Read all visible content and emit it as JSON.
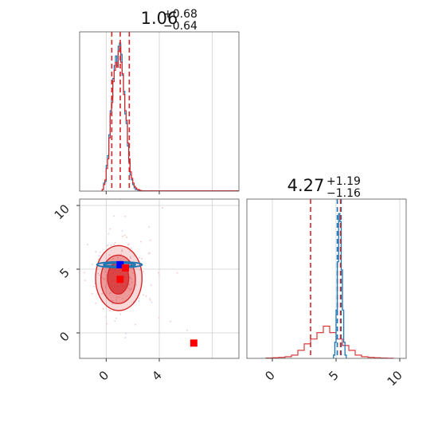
{
  "chart_data": {
    "type": "corner",
    "titles": {
      "param1": {
        "main": "1.06",
        "sup": "+0.68",
        "sub": "−0.64"
      },
      "param2": {
        "main": "4.27",
        "sup": "+1.19",
        "sub": "−1.16"
      }
    },
    "colors": {
      "red": "#d62728",
      "blue": "#1f77b4",
      "grid": "#cfcfcf"
    },
    "param1_hist": {
      "xlim": [
        -2,
        10
      ],
      "quantiles": [
        0.42,
        1.06,
        1.74
      ],
      "bins": [
        -0.3,
        -0.2,
        -0.1,
        0.0,
        0.1,
        0.2,
        0.3,
        0.4,
        0.5,
        0.6,
        0.7,
        0.8,
        0.9,
        1.0,
        1.1,
        1.2,
        1.3,
        1.4,
        1.5,
        1.6,
        1.7,
        1.8,
        1.9,
        2.0,
        2.1,
        2.2,
        2.3,
        2.4,
        2.5,
        2.6
      ],
      "red": [
        0.01,
        0.04,
        0.07,
        0.14,
        0.2,
        0.33,
        0.48,
        0.55,
        0.68,
        0.75,
        0.8,
        0.77,
        0.87,
        0.9,
        0.8,
        0.73,
        0.6,
        0.5,
        0.44,
        0.3,
        0.2,
        0.12,
        0.08,
        0.05,
        0.03,
        0.02,
        0.01,
        0.01,
        0.005,
        0.003
      ],
      "blue": [
        0.01,
        0.05,
        0.06,
        0.16,
        0.22,
        0.35,
        0.5,
        0.58,
        0.7,
        0.78,
        0.84,
        0.78,
        0.9,
        0.92,
        0.85,
        0.72,
        0.62,
        0.48,
        0.42,
        0.28,
        0.18,
        0.1,
        0.07,
        0.04,
        0.02,
        0.01,
        0.01,
        0.005,
        0.003,
        0.002
      ]
    },
    "scatter": {
      "xlim": [
        -2,
        10
      ],
      "ylim": [
        -2,
        10.5
      ],
      "x_ticks": [
        0,
        4
      ],
      "y_ticks": [
        0,
        5,
        10
      ],
      "red_contours": [
        {
          "cx": 0.9,
          "cy": 4.3,
          "rx": 0.8,
          "ry": 1.25,
          "level": 3
        },
        {
          "cx": 0.9,
          "cy": 4.2,
          "rx": 1.3,
          "ry": 1.9,
          "level": 2
        },
        {
          "cx": 0.95,
          "cy": 4.3,
          "rx": 1.75,
          "ry": 2.55,
          "level": 1
        }
      ],
      "blue_contours": [
        {
          "cx": 1.0,
          "cy": 5.35,
          "rx": 1.7,
          "ry": 0.22
        },
        {
          "cx": 1.0,
          "cy": 5.35,
          "rx": 1.2,
          "ry": 0.14
        }
      ],
      "markers": [
        {
          "x": 1.05,
          "y": 5.35,
          "color": "#0000ff"
        },
        {
          "x": 1.45,
          "y": 5.1,
          "color": "#ff0000"
        },
        {
          "x": 1.05,
          "y": 4.2,
          "color": "#ff0000"
        },
        {
          "x": 6.6,
          "y": -0.8,
          "color": "#ff0000"
        }
      ]
    },
    "param2_hist": {
      "xlim": [
        -2,
        10.5
      ],
      "x_ticks": [
        0,
        5,
        10
      ],
      "red_quantiles": [
        3.0,
        5.35
      ],
      "blue_quantiles": [
        5.1,
        5.4
      ],
      "red_bins": [
        -0.5,
        0,
        0.5,
        1.0,
        1.5,
        2.0,
        2.5,
        3.0,
        3.5,
        4.0,
        4.5,
        5.0,
        5.5,
        6.0,
        6.5,
        7.0,
        7.5,
        8.0,
        8.5,
        9.0
      ],
      "red": [
        0.002,
        0.004,
        0.006,
        0.01,
        0.02,
        0.05,
        0.09,
        0.12,
        0.16,
        0.2,
        0.16,
        0.12,
        0.08,
        0.05,
        0.02,
        0.01,
        0.006,
        0.004,
        0.002,
        0.001
      ],
      "blue_bins": [
        4.8,
        4.9,
        5.0,
        5.1,
        5.2,
        5.3,
        5.4,
        5.5,
        5.6,
        5.7
      ],
      "blue": [
        0.02,
        0.1,
        0.3,
        0.6,
        0.9,
        0.85,
        0.55,
        0.3,
        0.1,
        0.02
      ]
    }
  }
}
